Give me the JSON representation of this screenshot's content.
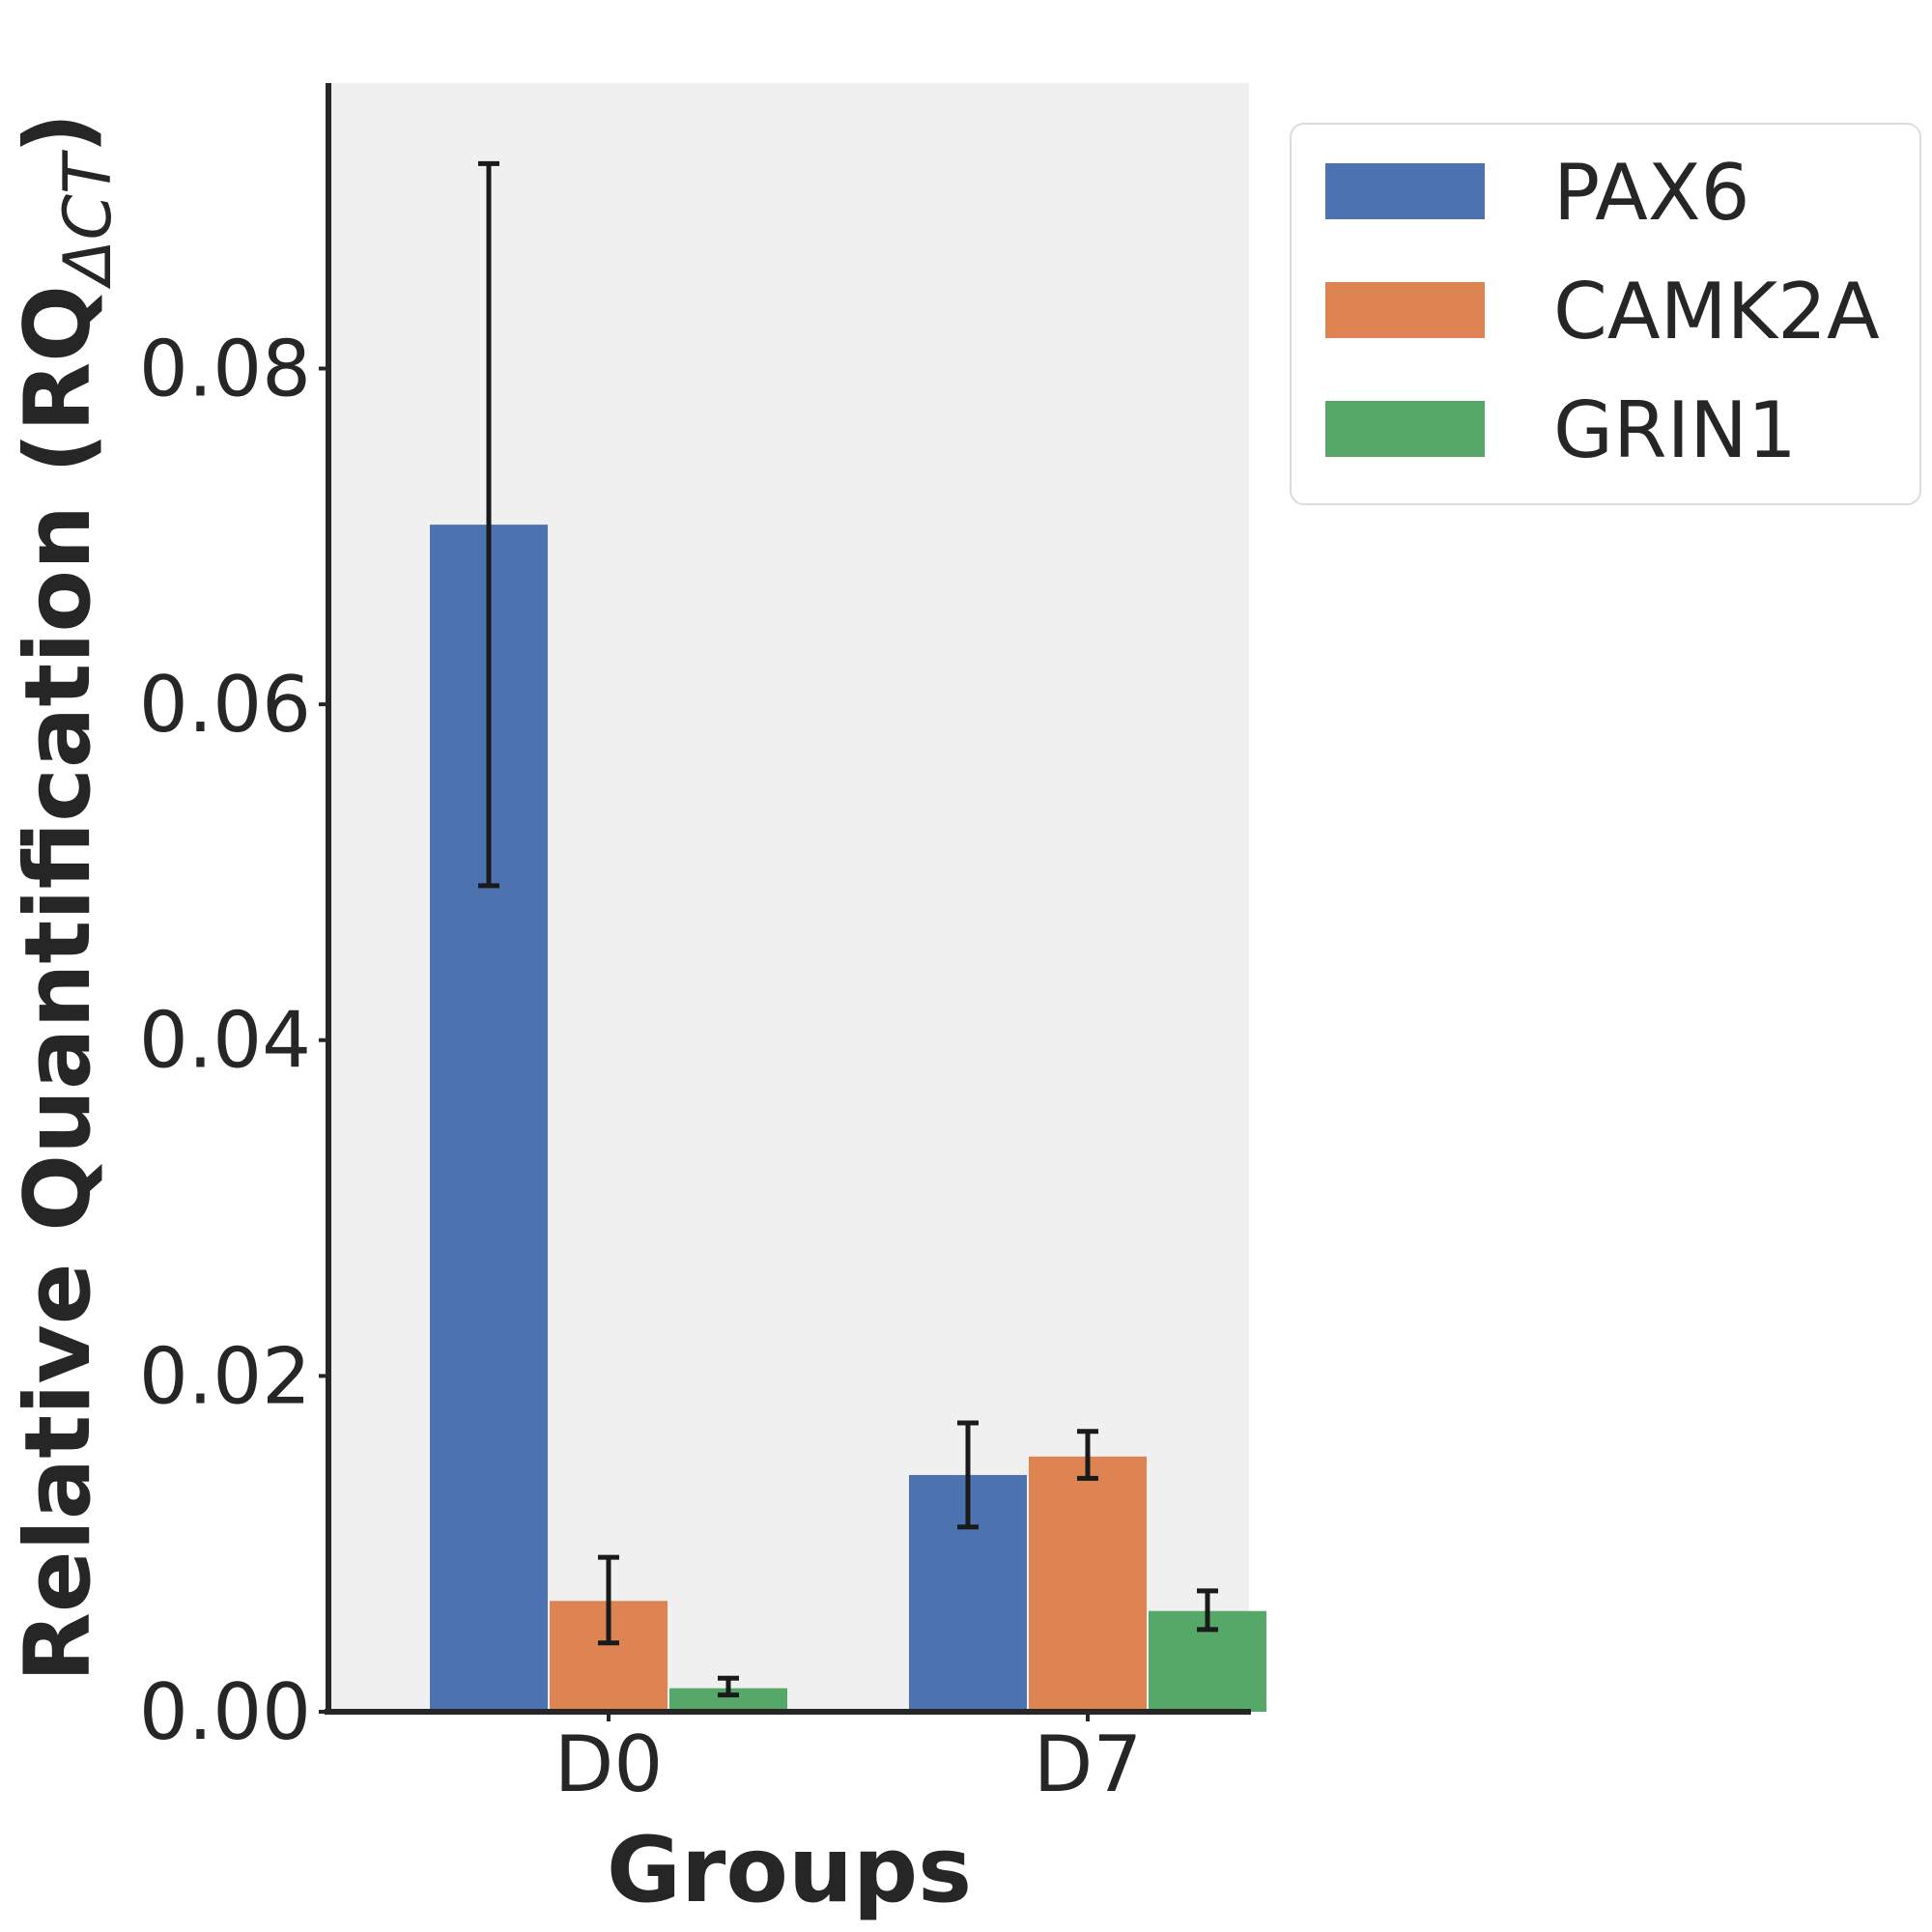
{
  "chart_data": {
    "type": "bar",
    "title": "",
    "xlabel": "Groups",
    "ylabel_main": "Relative Quantification (RQ",
    "ylabel_sub": "ΔCT",
    "ylabel_close": ")",
    "categories": [
      "D0",
      "D7"
    ],
    "ylim": [
      0,
      0.097
    ],
    "yticks": [
      0.0,
      0.02,
      0.04,
      0.06,
      0.08
    ],
    "ytick_labels": [
      "0.00",
      "0.02",
      "0.04",
      "0.06",
      "0.08"
    ],
    "grid": false,
    "plot_background": "#f0f0f0",
    "legend_position": "outside-top-right",
    "series": [
      {
        "name": "PAX6",
        "color": "#4c72b0",
        "values": [
          0.0707,
          0.0141
        ],
        "err_low": [
          0.0492,
          0.011
        ],
        "err_high": [
          0.0922,
          0.0172
        ]
      },
      {
        "name": "CAMK2A",
        "color": "#dd8452",
        "values": [
          0.0066,
          0.0152
        ],
        "err_low": [
          0.0041,
          0.0139
        ],
        "err_high": [
          0.0092,
          0.0167
        ]
      },
      {
        "name": "GRIN1",
        "color": "#55a868",
        "values": [
          0.0014,
          0.006
        ],
        "err_low": [
          0.001,
          0.0049
        ],
        "err_high": [
          0.002,
          0.0072
        ]
      }
    ]
  }
}
